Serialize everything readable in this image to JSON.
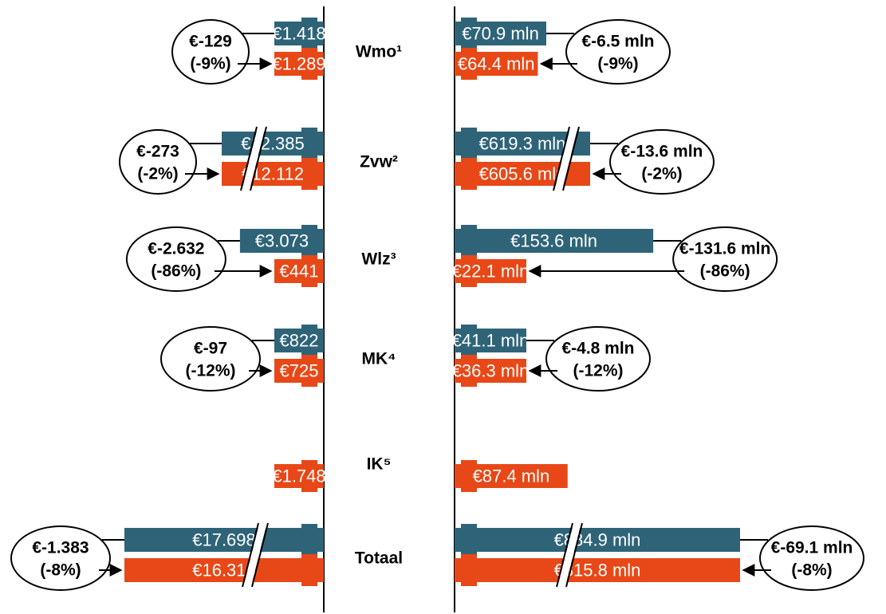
{
  "chart_data": {
    "type": "bar",
    "colors": {
      "before": "#2F6478",
      "after": "#E84817",
      "axis": "#000000"
    },
    "categories": [
      {
        "label": "Wmo¹",
        "left": {
          "before": 1418,
          "after": 1289,
          "before_label": "€1.418",
          "after_label": "€1.289",
          "change_amount": "€-129",
          "change_pct": "(-9%)"
        },
        "right": {
          "before": 70.9,
          "after": 64.4,
          "before_label": "€70.9 mln",
          "after_label": "€64.4 mln",
          "change_amount": "€-6.5 mln",
          "change_pct": "(-9%)"
        }
      },
      {
        "label": "Zvw²",
        "left": {
          "before": 12385,
          "after": 12112,
          "before_label": "€12.385",
          "after_label": "€12.112",
          "change_amount": "€-273",
          "change_pct": "(-2%)"
        },
        "right": {
          "before": 619.3,
          "after": 605.6,
          "before_label": "€619.3 mln",
          "after_label": "€605.6 mln",
          "change_amount": "€-13.6 mln",
          "change_pct": "(-2%)"
        }
      },
      {
        "label": "Wlz³",
        "left": {
          "before": 3073,
          "after": 441,
          "before_label": "€3.073",
          "after_label": "€441",
          "change_amount": "€-2.632",
          "change_pct": "(-86%)"
        },
        "right": {
          "before": 153.6,
          "after": 22.1,
          "before_label": "€153.6 mln",
          "after_label": "€22.1 mln",
          "change_amount": "€-131.6 mln",
          "change_pct": "(-86%)"
        }
      },
      {
        "label": "MK⁴",
        "left": {
          "before": 822,
          "after": 725,
          "before_label": "€822",
          "after_label": "€725",
          "change_amount": "€-97",
          "change_pct": "(-12%)"
        },
        "right": {
          "before": 41.1,
          "after": 36.3,
          "before_label": "€41.1 mln",
          "after_label": "€36.3 mln",
          "change_amount": "€-4.8 mln",
          "change_pct": "(-12%)"
        }
      },
      {
        "label": "IK⁵",
        "left": {
          "before": null,
          "after": 1748,
          "before_label": "",
          "after_label": "€1.748",
          "change_amount": "",
          "change_pct": ""
        },
        "right": {
          "before": null,
          "after": 87.4,
          "before_label": "",
          "after_label": "€87.4 mln",
          "change_amount": "",
          "change_pct": ""
        }
      },
      {
        "label": "Totaal",
        "left": {
          "before": 17698,
          "after": 16315,
          "before_label": "€17.698",
          "after_label": "€16.315",
          "change_amount": "€-1.383",
          "change_pct": "(-8%)"
        },
        "right": {
          "before": 884.9,
          "after": 815.8,
          "before_label": "€884.9 mln",
          "after_label": "€815.8 mln",
          "change_amount": "€-69.1 mln",
          "change_pct": "(-8%)"
        }
      }
    ]
  }
}
